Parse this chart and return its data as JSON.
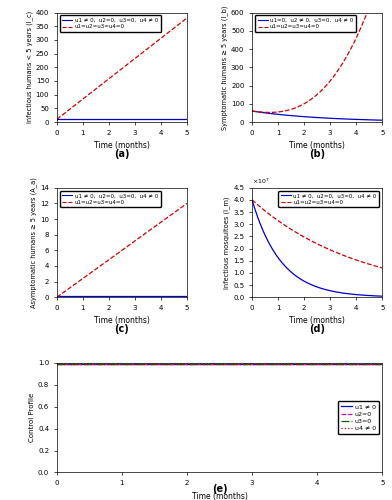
{
  "subplots": [
    {
      "label": "(a)",
      "ylabel": "Infectious humans < 5 years (I_c)",
      "xlabel": "Time (months)",
      "ylim": [
        0,
        400
      ],
      "yticks": [
        0,
        50,
        100,
        150,
        200,
        250,
        300,
        350,
        400
      ],
      "leg1": "u1 ≠ 0,  u2=0,  u3=0,  u4 ≠ 0",
      "leg2": "u1=u2=u3=u4=0"
    },
    {
      "label": "(b)",
      "ylabel": "Symptomatic humans ≥ 5 years (I_b)",
      "xlabel": "Time (months)",
      "ylim": [
        0,
        600
      ],
      "yticks": [
        0,
        100,
        200,
        300,
        400,
        500,
        600
      ],
      "leg1": "u1=0,  u2 ≠ 0,  u3=0,  u4 ≠ 0",
      "leg2": "u1=u2=u3=u4=0"
    },
    {
      "label": "(c)",
      "ylabel": "Asymptomatic humans ≥ 5 years (A_a)",
      "xlabel": "Time (months)",
      "ylim": [
        0,
        14
      ],
      "yticks": [
        0,
        2,
        4,
        6,
        8,
        10,
        12,
        14
      ],
      "leg1": "u1 ≠ 0,  u2=0,  u3=0,  u4 ≠ 0",
      "leg2": "u1=u2=u3=u4=0"
    },
    {
      "label": "(d)",
      "ylabel": "Infectious mosquitoes (I_m)",
      "xlabel": "Time (months)",
      "ylim": [
        0,
        4.5
      ],
      "yticks": [
        0,
        0.5,
        1.0,
        1.5,
        2.0,
        2.5,
        3.0,
        3.5,
        4.0,
        4.5
      ],
      "leg1": "u1 ≠ 0,  u2=0,  u3=0,  u4 ≠ 0",
      "leg2": "u1=u2=u3=u4=0"
    }
  ],
  "legend_panel": {
    "label": "(e)",
    "xlabel": "Time (months)",
    "ylabel": "Control Profile",
    "ylim": [
      0,
      1
    ],
    "yticks": [
      0,
      0.2,
      0.4,
      0.6,
      0.8,
      1.0
    ],
    "leg_u1": "u1 ≠ 0",
    "leg_u2": "u2=0",
    "leg_u3": "u3=0",
    "leg_u4": "u4 ≠ 0"
  },
  "color_ctrl": "#0000cc",
  "color_unctrl": "#cc0000",
  "ls_ctrl": "-",
  "ls_unctrl": "--"
}
